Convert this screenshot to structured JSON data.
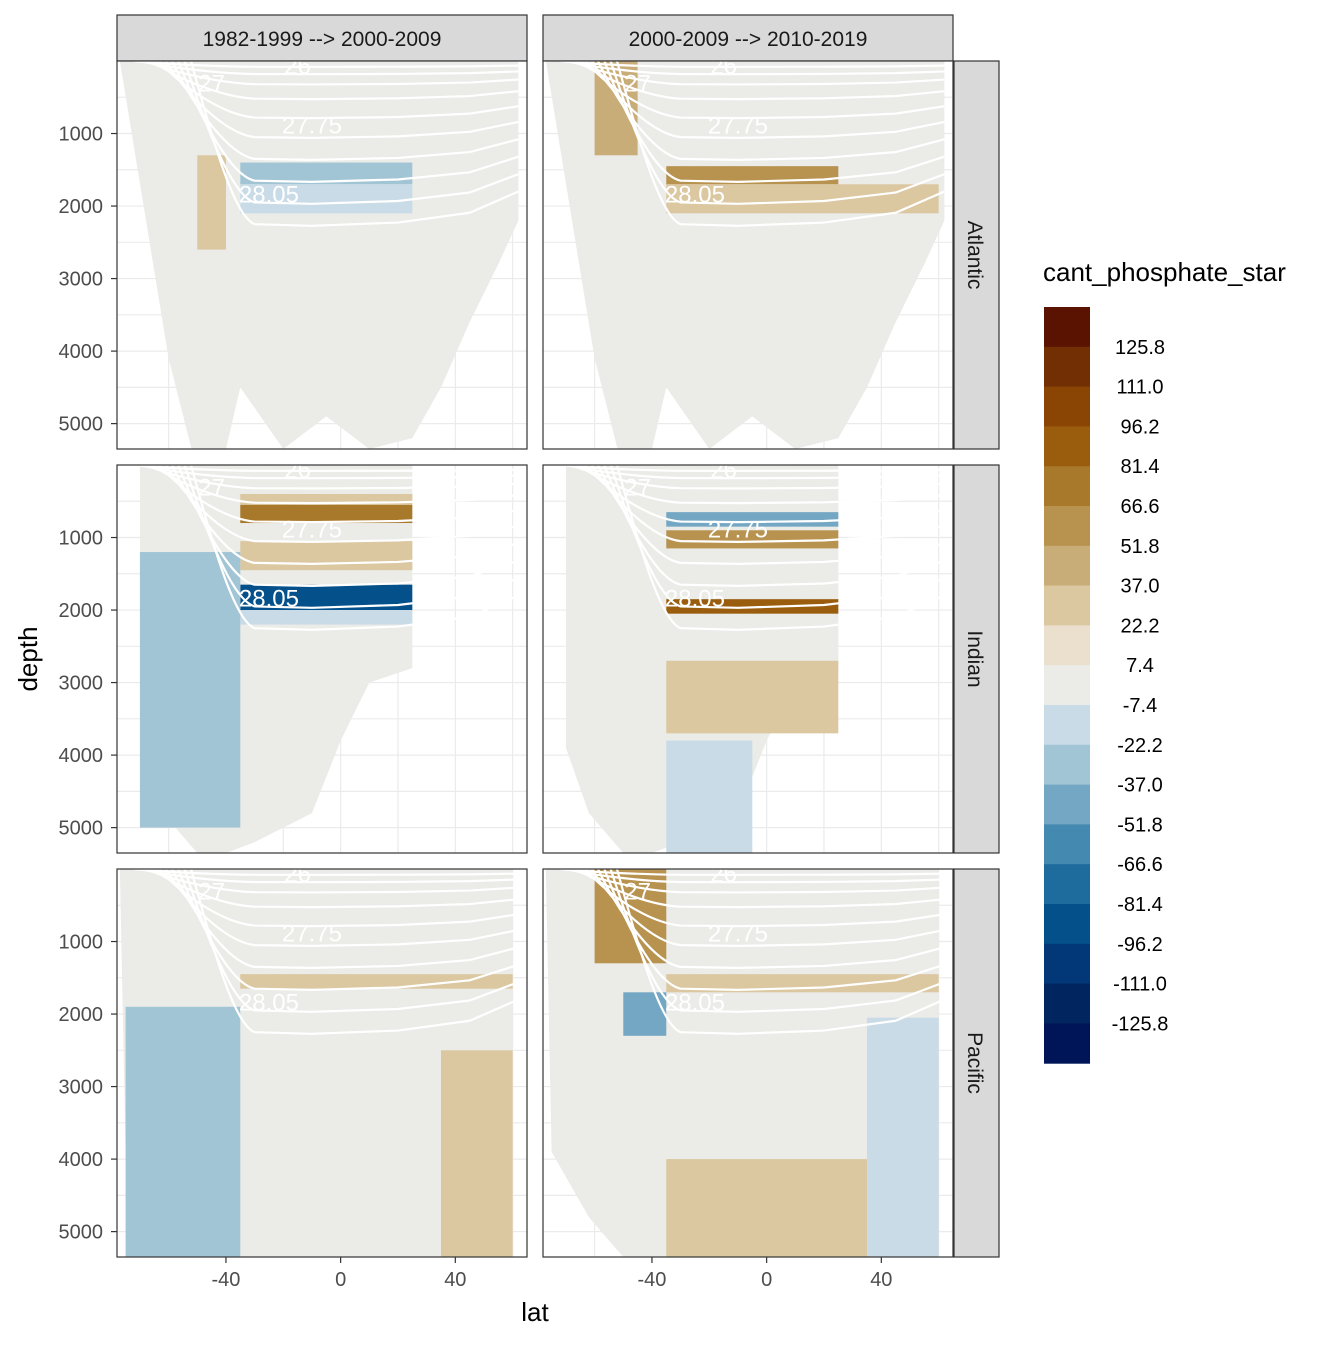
{
  "chart_data": {
    "type": "heatmap",
    "title": "",
    "xlabel": "lat",
    "ylabel": "depth",
    "xlim": [
      -78,
      65
    ],
    "ylim": [
      5350,
      0
    ],
    "x_ticks": [
      "-40",
      "0",
      "40"
    ],
    "y_ticks": [
      "1000",
      "2000",
      "3000",
      "4000",
      "5000"
    ],
    "column_facets": [
      "1982-1999 --> 2000-2009",
      "2000-2009 --> 2010-2019"
    ],
    "row_facets": [
      "Atlantic",
      "Indian",
      "Pacific"
    ],
    "contour_labels": [
      "26",
      "27",
      "27.75",
      "28.05"
    ],
    "legend": {
      "title": "cant_phosphate_star",
      "labels": [
        "125.8",
        "111.0",
        "96.2",
        "81.4",
        "66.6",
        "51.8",
        "37.0",
        "22.2",
        "7.4",
        "-7.4",
        "-22.2",
        "-37.0",
        "-51.8",
        "-66.6",
        "-81.4",
        "-96.2",
        "-111.0",
        "-125.8"
      ],
      "colors": [
        "#5a1300",
        "#732f04",
        "#8a4504",
        "#9a5d0d",
        "#a8782b",
        "#b8924f",
        "#c9ad78",
        "#dbc7a0",
        "#ebe0ce",
        "#ebebe8",
        "#c8dbe7",
        "#a2c5d6",
        "#74a7c3",
        "#4389b0",
        "#1e6b9d",
        "#04508a",
        "#023877",
        "#01255f",
        "#001458"
      ]
    },
    "panels": [
      {
        "row": "Atlantic",
        "col": "1982-1999 --> 2000-2009",
        "bands": [
          {
            "lat": [
              -35,
              25
            ],
            "depth": [
              1400,
              1700
            ],
            "value": -37.0
          },
          {
            "lat": [
              -35,
              25
            ],
            "depth": [
              1700,
              2100
            ],
            "value": -22.2
          },
          {
            "lat": [
              -50,
              -40
            ],
            "depth": [
              1300,
              2600
            ],
            "value": 22.2
          }
        ]
      },
      {
        "row": "Atlantic",
        "col": "2000-2009 --> 2010-2019",
        "bands": [
          {
            "lat": [
              -35,
              25
            ],
            "depth": [
              1450,
              1700
            ],
            "value": 51.8
          },
          {
            "lat": [
              -35,
              60
            ],
            "depth": [
              1700,
              2100
            ],
            "value": 22.2
          },
          {
            "lat": [
              -60,
              -45
            ],
            "depth": [
              0,
              1300
            ],
            "value": 37.0
          }
        ]
      },
      {
        "row": "Indian",
        "col": "1982-1999 --> 2000-2009",
        "bands": [
          {
            "lat": [
              -35,
              25
            ],
            "depth": [
              400,
              550
            ],
            "value": 22.2
          },
          {
            "lat": [
              -35,
              25
            ],
            "depth": [
              550,
              800
            ],
            "value": 66.6
          },
          {
            "lat": [
              -35,
              25
            ],
            "depth": [
              1050,
              1450
            ],
            "value": 22.2
          },
          {
            "lat": [
              -35,
              25
            ],
            "depth": [
              1650,
              2000
            ],
            "value": -96.2
          },
          {
            "lat": [
              -35,
              25
            ],
            "depth": [
              2000,
              2200
            ],
            "value": -22.2
          },
          {
            "lat": [
              -70,
              -35
            ],
            "depth": [
              1200,
              5000
            ],
            "value": -37.0
          }
        ]
      },
      {
        "row": "Indian",
        "col": "2000-2009 --> 2010-2019",
        "bands": [
          {
            "lat": [
              -35,
              25
            ],
            "depth": [
              650,
              850
            ],
            "value": -51.8
          },
          {
            "lat": [
              -35,
              25
            ],
            "depth": [
              900,
              1150
            ],
            "value": 51.8
          },
          {
            "lat": [
              -35,
              25
            ],
            "depth": [
              1850,
              2050
            ],
            "value": 81.4
          },
          {
            "lat": [
              -35,
              25
            ],
            "depth": [
              2700,
              3700
            ],
            "value": 22.2
          },
          {
            "lat": [
              -35,
              -5
            ],
            "depth": [
              3800,
              5350
            ],
            "value": -22.2
          }
        ]
      },
      {
        "row": "Pacific",
        "col": "1982-1999 --> 2000-2009",
        "bands": [
          {
            "lat": [
              -35,
              60
            ],
            "depth": [
              1450,
              1650
            ],
            "value": 22.2
          },
          {
            "lat": [
              -75,
              -35
            ],
            "depth": [
              1900,
              5350
            ],
            "value": -37.0
          },
          {
            "lat": [
              35,
              60
            ],
            "depth": [
              2500,
              5350
            ],
            "value": 22.2
          }
        ]
      },
      {
        "row": "Pacific",
        "col": "2000-2009 --> 2010-2019",
        "bands": [
          {
            "lat": [
              -60,
              -35
            ],
            "depth": [
              0,
              1300
            ],
            "value": 51.8
          },
          {
            "lat": [
              -50,
              -35
            ],
            "depth": [
              1700,
              2300
            ],
            "value": -51.8
          },
          {
            "lat": [
              -35,
              60
            ],
            "depth": [
              1450,
              1700
            ],
            "value": 22.2
          },
          {
            "lat": [
              35,
              60
            ],
            "depth": [
              2050,
              5350
            ],
            "value": -22.2
          },
          {
            "lat": [
              -35,
              35
            ],
            "depth": [
              4000,
              5350
            ],
            "value": 22.2
          }
        ]
      }
    ]
  }
}
